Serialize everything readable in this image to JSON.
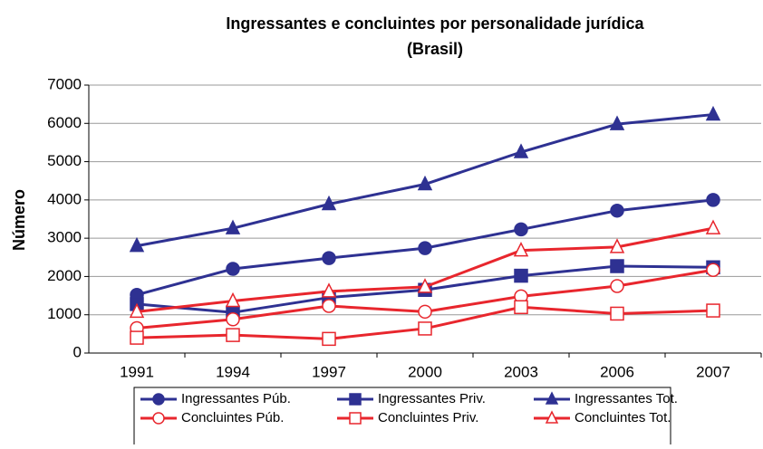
{
  "chart_data": {
    "type": "line",
    "title": "Ingressantes e concluintes por personalidade jurídica",
    "subtitle": "(Brasil)",
    "y_label": "Número",
    "categories": [
      "1991",
      "1994",
      "1997",
      "2000",
      "2003",
      "2006",
      "2007"
    ],
    "series": [
      {
        "name": "Ingressantes Púb.",
        "color": "#2e3192",
        "marker": "circle",
        "filled": true,
        "values": [
          1520,
          2200,
          2480,
          2740,
          3230,
          3720,
          4000
        ]
      },
      {
        "name": "Ingressantes Priv.",
        "color": "#2e3192",
        "marker": "square",
        "filled": true,
        "values": [
          1280,
          1060,
          1450,
          1650,
          2020,
          2270,
          2240
        ]
      },
      {
        "name": "Ingressantes Tot.",
        "color": "#2e3192",
        "marker": "triangle",
        "filled": true,
        "values": [
          2800,
          3260,
          3890,
          4410,
          5250,
          5980,
          6230
        ]
      },
      {
        "name": "Concluintes Púb.",
        "color": "#e8262d",
        "marker": "circle",
        "filled": false,
        "values": [
          650,
          880,
          1230,
          1080,
          1480,
          1750,
          2170
        ]
      },
      {
        "name": "Concluintes Priv.",
        "color": "#e8262d",
        "marker": "square",
        "filled": false,
        "values": [
          400,
          470,
          370,
          640,
          1200,
          1030,
          1110
        ]
      },
      {
        "name": "Concluintes Tot.",
        "color": "#e8262d",
        "marker": "triangle",
        "filled": false,
        "values": [
          1080,
          1360,
          1610,
          1730,
          2680,
          2770,
          3260
        ]
      }
    ],
    "ylim": [
      0,
      7000
    ],
    "yticks": [
      0,
      1000,
      2000,
      3000,
      4000,
      5000,
      6000,
      7000
    ],
    "grid": true,
    "legend": "bottom"
  }
}
